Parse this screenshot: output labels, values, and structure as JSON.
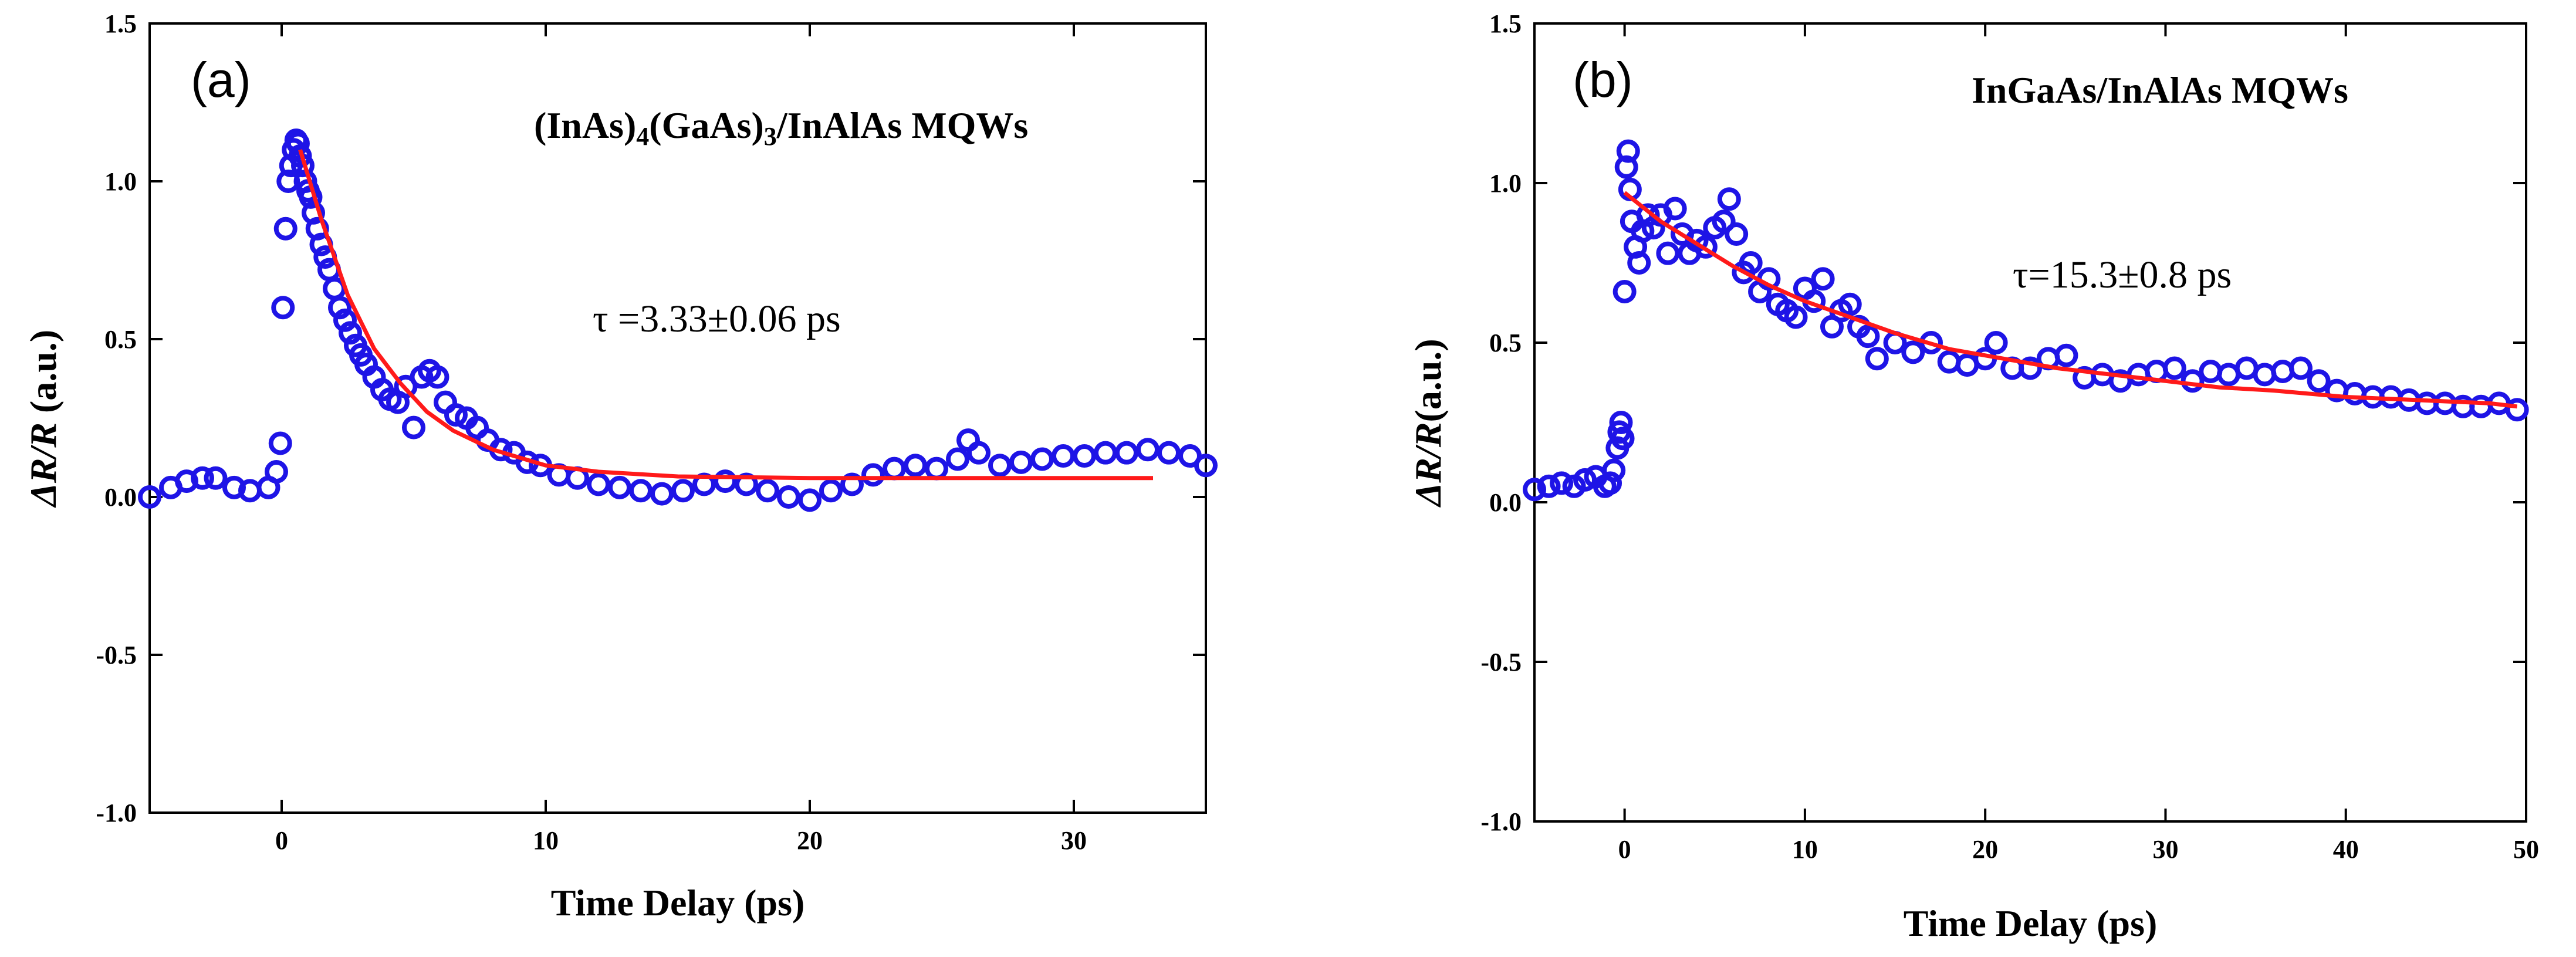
{
  "colors": {
    "points": "#1e14e6",
    "fit": "#ff1a1a",
    "axis": "#000000"
  },
  "chart_data": [
    {
      "type": "scatter",
      "panel": "(a)",
      "xlabel": "Time Delay (ps)",
      "ylabel": "ΔR/R (a.u.)",
      "annotation": "(InAs)4(GaAs)3/InAlAs MQWs",
      "tau_label": "τ =3.33±0.06 ps",
      "xlim": [
        -5,
        35
      ],
      "ylim": [
        -1.0,
        1.5
      ],
      "xticks": [
        0,
        10,
        20,
        30
      ],
      "xtick_labels": [
        "0",
        "10",
        "20",
        "30"
      ],
      "yticks": [
        -1.0,
        -0.5,
        0.0,
        0.5,
        1.0,
        1.5
      ],
      "ytick_labels": [
        "-1.0",
        "-0.5",
        "0.0",
        "0.5",
        "1.0",
        "1.5"
      ],
      "series": [
        {
          "name": "data",
          "x": [
            -5,
            -4.2,
            -3.6,
            -3,
            -2.5,
            -1.8,
            -1.2,
            -0.5,
            -0.2,
            -0.05,
            0.05,
            0.15,
            0.25,
            0.35,
            0.45,
            0.55,
            0.62,
            0.7,
            0.8,
            0.9,
            1.0,
            1.1,
            1.2,
            1.35,
            1.5,
            1.65,
            1.8,
            2.0,
            2.2,
            2.4,
            2.6,
            2.8,
            3.0,
            3.2,
            3.5,
            3.8,
            4.1,
            4.4,
            4.7,
            5.0,
            5.3,
            5.6,
            5.9,
            6.2,
            6.6,
            7.0,
            7.4,
            7.8,
            8.3,
            8.8,
            9.3,
            9.8,
            10.5,
            11.2,
            12.0,
            12.8,
            13.6,
            14.4,
            15.2,
            16.0,
            16.8,
            17.6,
            18.4,
            19.2,
            20.0,
            20.8,
            21.6,
            22.4,
            23.2,
            24.0,
            24.8,
            25.6,
            26.0,
            26.4,
            27.2,
            28.0,
            28.8,
            29.6,
            30.4,
            31.2,
            32.0,
            32.8,
            33.6,
            34.4,
            35.0
          ],
          "y": [
            0.0,
            0.03,
            0.05,
            0.06,
            0.06,
            0.03,
            0.02,
            0.03,
            0.08,
            0.17,
            0.6,
            0.85,
            1.0,
            1.05,
            1.1,
            1.13,
            1.12,
            1.08,
            1.05,
            1.0,
            0.97,
            0.95,
            0.9,
            0.85,
            0.8,
            0.76,
            0.72,
            0.66,
            0.6,
            0.56,
            0.52,
            0.48,
            0.45,
            0.42,
            0.38,
            0.34,
            0.31,
            0.3,
            0.35,
            0.22,
            0.38,
            0.4,
            0.38,
            0.3,
            0.26,
            0.25,
            0.22,
            0.18,
            0.15,
            0.14,
            0.11,
            0.1,
            0.07,
            0.06,
            0.04,
            0.03,
            0.02,
            0.01,
            0.02,
            0.04,
            0.05,
            0.04,
            0.02,
            0.0,
            -0.01,
            0.02,
            0.04,
            0.07,
            0.09,
            0.1,
            0.09,
            0.12,
            0.18,
            0.14,
            0.1,
            0.11,
            0.12,
            0.13,
            0.13,
            0.14,
            0.14,
            0.15,
            0.14,
            0.13,
            0.1
          ]
        },
        {
          "name": "fit",
          "x": [
            0.7,
            1.5,
            2.5,
            3.5,
            4.5,
            5.5,
            6.5,
            8,
            10,
            12,
            15,
            20,
            25,
            30,
            33
          ],
          "y": [
            1.1,
            0.88,
            0.64,
            0.47,
            0.36,
            0.27,
            0.21,
            0.15,
            0.1,
            0.08,
            0.065,
            0.06,
            0.06,
            0.06,
            0.06
          ]
        }
      ]
    },
    {
      "type": "scatter",
      "panel": "(b)",
      "xlabel": "Time Delay (ps)",
      "ylabel": "ΔR/R(a.u.)",
      "annotation": "InGaAs/InAlAs MQWs",
      "tau_label": "τ=15.3±0.8 ps",
      "xlim": [
        -5,
        50
      ],
      "ylim": [
        -1.0,
        1.5
      ],
      "xticks": [
        0,
        10,
        20,
        30,
        40,
        50
      ],
      "xtick_labels": [
        "0",
        "10",
        "20",
        "30",
        "40",
        "50"
      ],
      "yticks": [
        -1.0,
        -0.5,
        0.0,
        0.5,
        1.0,
        1.5
      ],
      "ytick_labels": [
        "-1.0",
        "-0.5",
        "0.0",
        "0.5",
        "1.0",
        "1.5"
      ],
      "series": [
        {
          "name": "data",
          "x": [
            -5,
            -4.2,
            -3.5,
            -2.8,
            -2.2,
            -1.6,
            -1.1,
            -0.8,
            -0.6,
            -0.4,
            -0.3,
            -0.2,
            -0.1,
            0.0,
            0.1,
            0.2,
            0.3,
            0.4,
            0.6,
            0.8,
            1.0,
            1.3,
            1.6,
            2.0,
            2.4,
            2.8,
            3.2,
            3.6,
            4.0,
            4.5,
            5.0,
            5.5,
            5.8,
            6.2,
            6.6,
            7.0,
            7.5,
            8.0,
            8.5,
            9.0,
            9.5,
            10.0,
            10.5,
            11.0,
            11.5,
            12.0,
            12.5,
            13.0,
            13.5,
            14.0,
            15.0,
            16.0,
            17.0,
            18.0,
            19.0,
            20.0,
            20.6,
            21.5,
            22.5,
            23.5,
            24.5,
            25.5,
            26.5,
            27.5,
            28.5,
            29.5,
            30.5,
            31.5,
            32.5,
            33.5,
            34.5,
            35.5,
            36.5,
            37.5,
            38.5,
            39.5,
            40.5,
            41.5,
            42.5,
            43.5,
            44.5,
            45.5,
            46.5,
            47.5,
            48.5,
            49.5
          ],
          "y": [
            0.04,
            0.05,
            0.06,
            0.05,
            0.07,
            0.08,
            0.05,
            0.06,
            0.1,
            0.17,
            0.22,
            0.25,
            0.2,
            0.66,
            1.05,
            1.1,
            0.98,
            0.88,
            0.8,
            0.75,
            0.85,
            0.9,
            0.86,
            0.9,
            0.78,
            0.92,
            0.84,
            0.78,
            0.82,
            0.8,
            0.86,
            0.88,
            0.95,
            0.84,
            0.72,
            0.75,
            0.66,
            0.7,
            0.62,
            0.6,
            0.58,
            0.67,
            0.63,
            0.7,
            0.55,
            0.6,
            0.62,
            0.55,
            0.52,
            0.45,
            0.5,
            0.47,
            0.5,
            0.44,
            0.43,
            0.45,
            0.5,
            0.42,
            0.42,
            0.45,
            0.46,
            0.39,
            0.4,
            0.38,
            0.4,
            0.41,
            0.42,
            0.38,
            0.41,
            0.4,
            0.42,
            0.4,
            0.41,
            0.42,
            0.38,
            0.35,
            0.34,
            0.33,
            0.33,
            0.32,
            0.31,
            0.31,
            0.3,
            0.3,
            0.31,
            0.29
          ]
        },
        {
          "name": "fit",
          "x": [
            0,
            2,
            4,
            6,
            8,
            10,
            12,
            15,
            18,
            21,
            24,
            27,
            30,
            33,
            36,
            40,
            44,
            48,
            49.5
          ],
          "y": [
            0.97,
            0.88,
            0.81,
            0.74,
            0.68,
            0.63,
            0.59,
            0.53,
            0.48,
            0.45,
            0.42,
            0.4,
            0.38,
            0.36,
            0.35,
            0.33,
            0.32,
            0.31,
            0.3
          ]
        }
      ]
    }
  ]
}
